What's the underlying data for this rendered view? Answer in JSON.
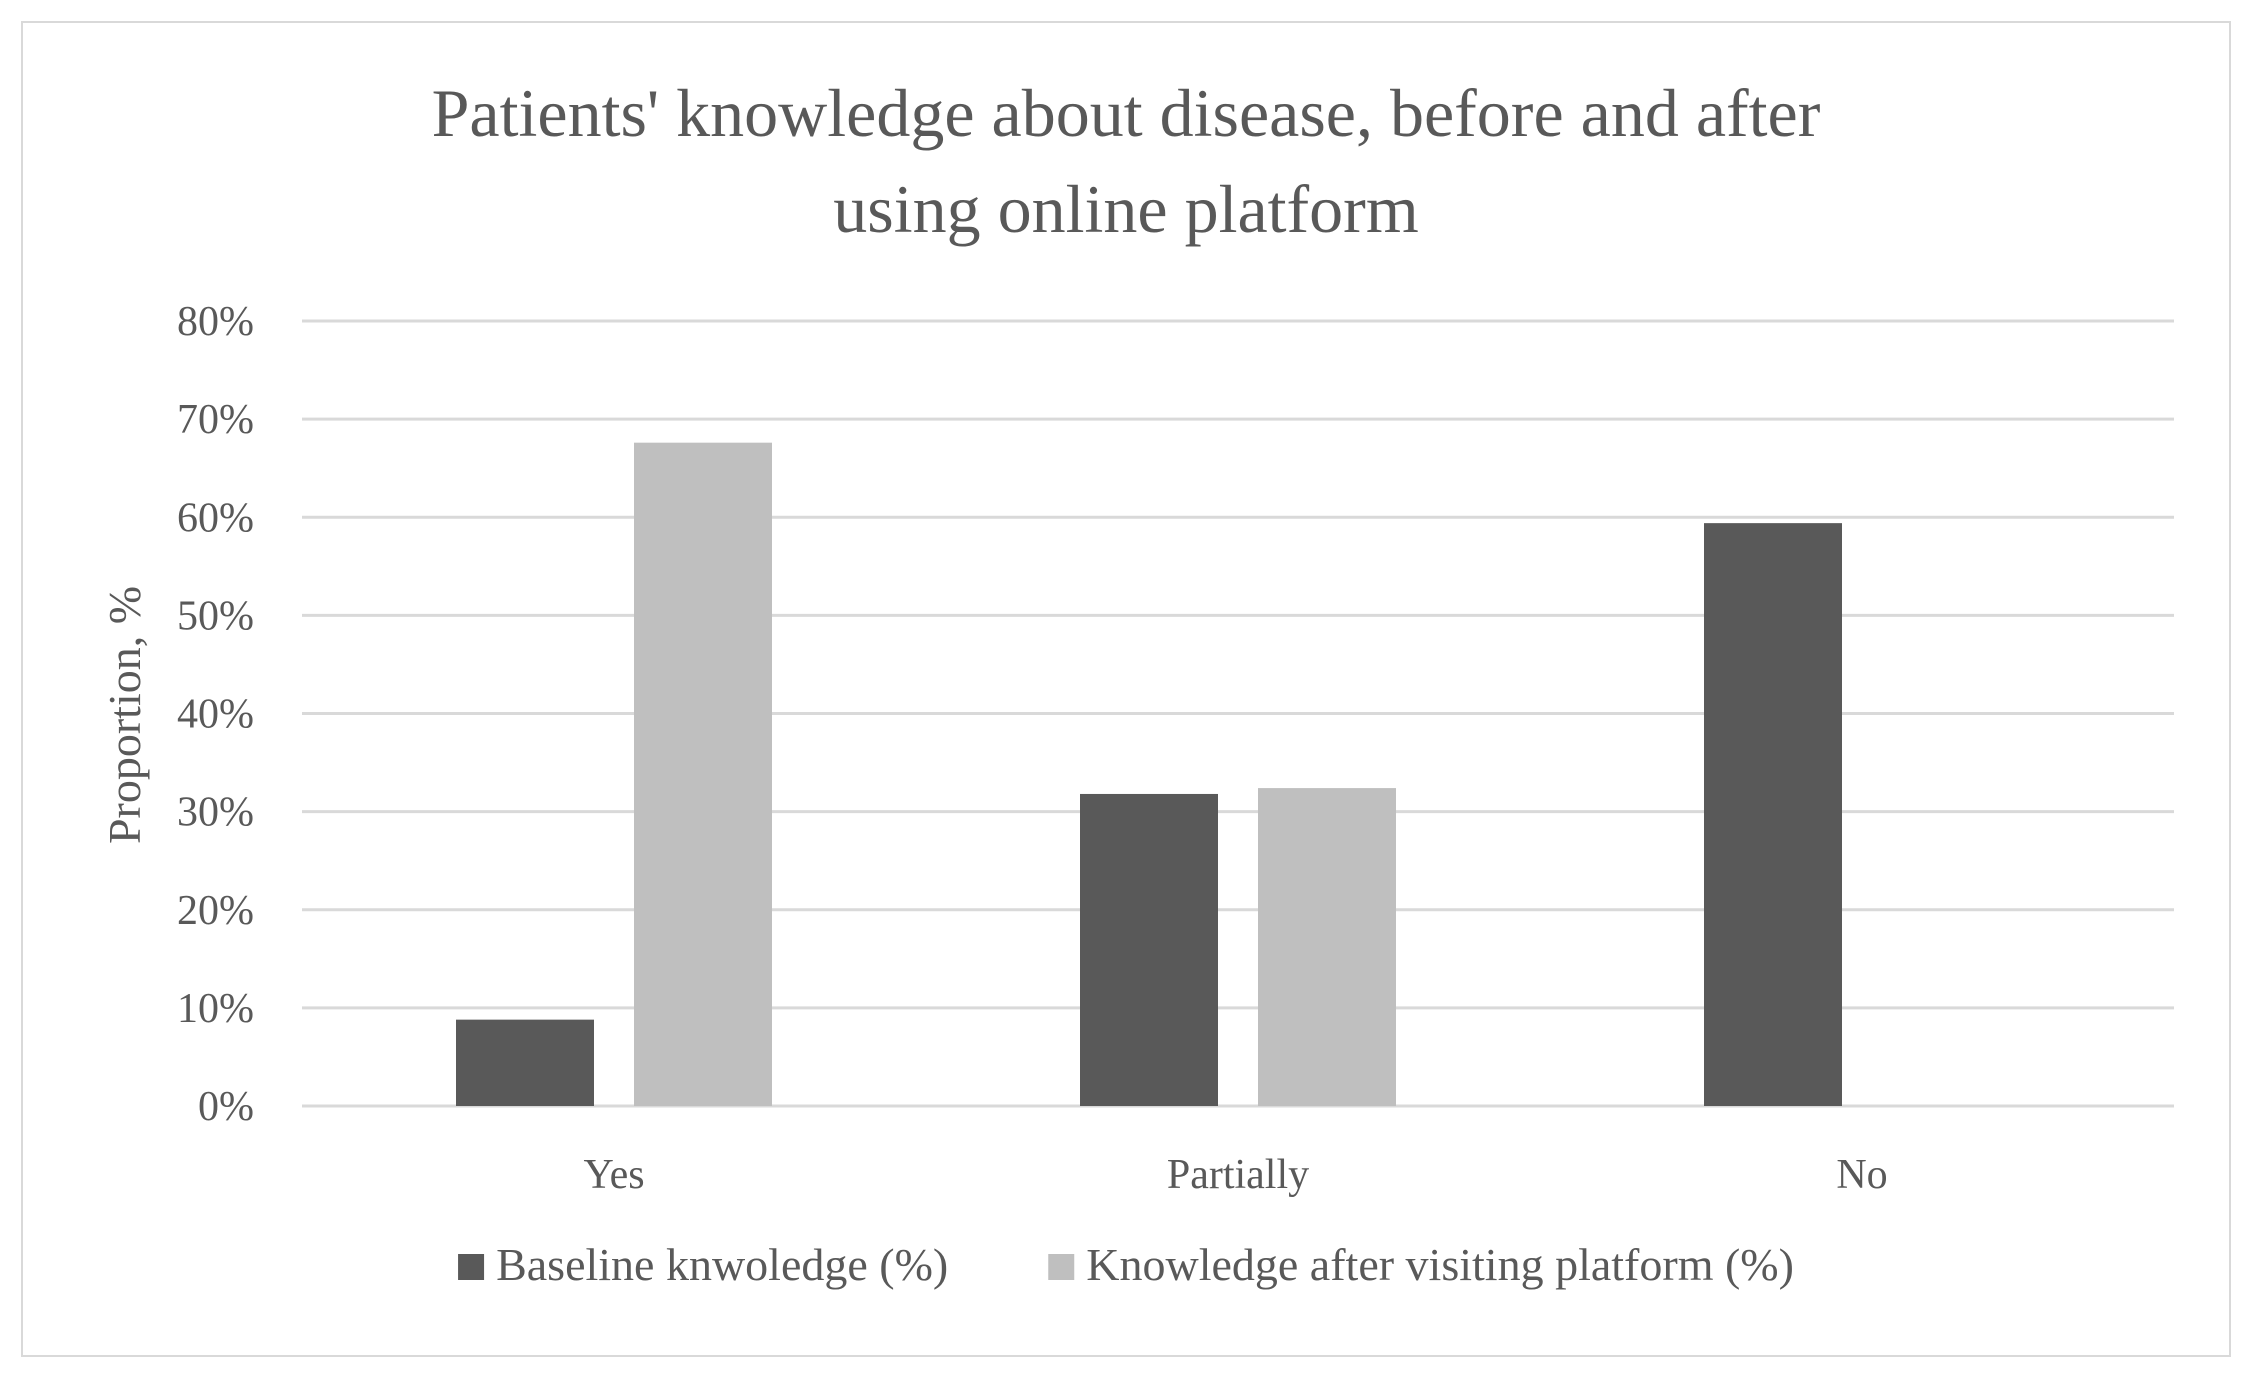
{
  "chart_data": {
    "type": "bar",
    "title_lines": [
      "Patients' knowledge about disease, before and after",
      "using online platform"
    ],
    "ylabel": "Proportion, %",
    "xlabel": "",
    "categories": [
      "Yes",
      "Partially",
      "No"
    ],
    "series": [
      {
        "name": "Baseline knwoledge (%)",
        "values": [
          8.8,
          31.8,
          59.4
        ],
        "color": "#595959"
      },
      {
        "name": "Knowledge after visiting platform (%)",
        "values": [
          67.6,
          32.4,
          0
        ],
        "color": "#bfbfbf"
      }
    ],
    "ylim": [
      0,
      80
    ],
    "yticks": [
      0,
      10,
      20,
      30,
      40,
      50,
      60,
      70,
      80
    ],
    "ytick_labels": [
      "0%",
      "10%",
      "20%",
      "30%",
      "40%",
      "50%",
      "60%",
      "70%",
      "80%"
    ],
    "grid": true,
    "legend_position": "bottom",
    "colors": {
      "gridline": "#d9d9d9",
      "text": "#595959"
    }
  }
}
